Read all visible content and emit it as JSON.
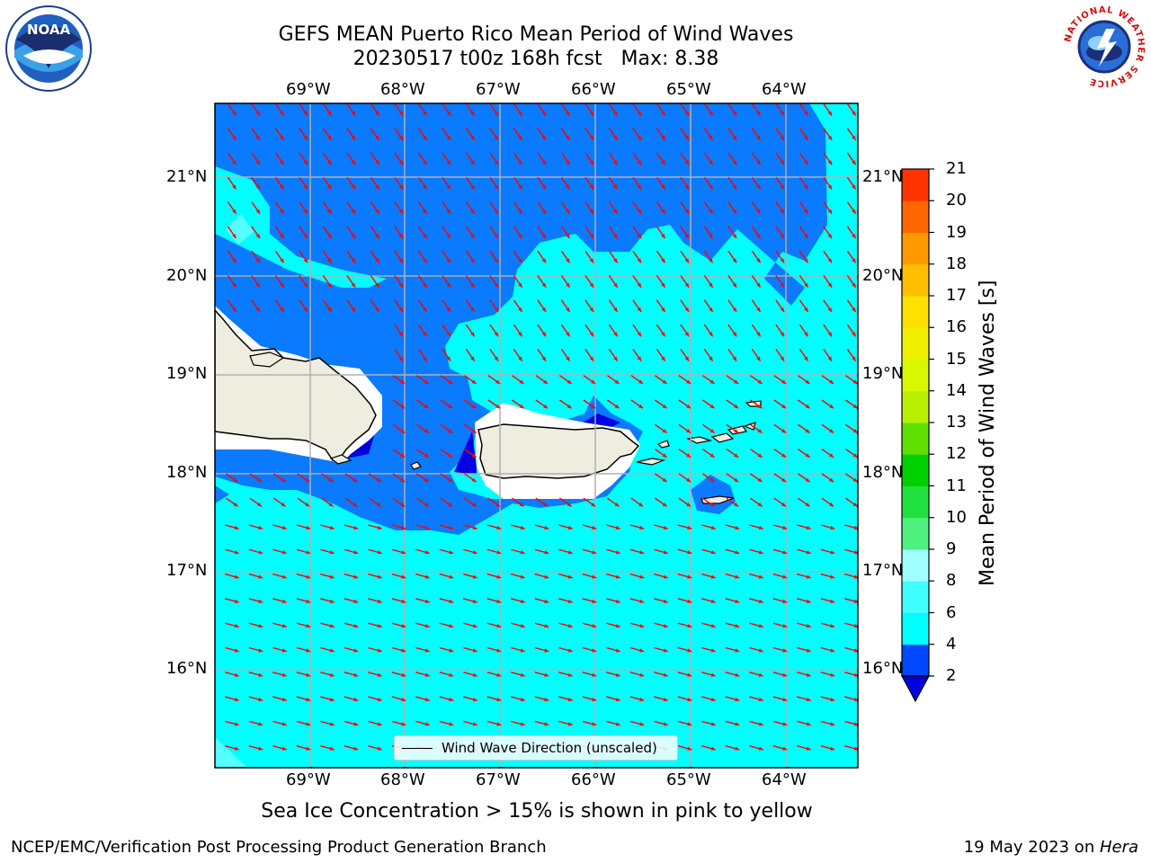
{
  "title": {
    "line1": "GEFS MEAN Puerto Rico Mean Period of Wind Waves",
    "line2": "20230517 t00z 168h fcst   Max: 8.38"
  },
  "axes": {
    "lon_labels": [
      "69°W",
      "68°W",
      "67°W",
      "66°W",
      "65°W",
      "64°W"
    ],
    "lat_labels": [
      "21°N",
      "20°N",
      "19°N",
      "18°N",
      "17°N",
      "16°N"
    ]
  },
  "colorbar": {
    "label": "Mean Period of Wind Waves [s]",
    "ticks": [
      "2",
      "4",
      "6",
      "8",
      "9",
      "10",
      "11",
      "12",
      "13",
      "14",
      "15",
      "16",
      "17",
      "18",
      "19",
      "20",
      "21"
    ],
    "colors": [
      "#0047ff",
      "#00ffff",
      "#40ffff",
      "#a0ffff",
      "#50f080",
      "#20e040",
      "#00d000",
      "#60e000",
      "#b8f000",
      "#d8f800",
      "#f0f000",
      "#ffe000",
      "#ffbf00",
      "#ff9900",
      "#ff6600",
      "#ff3300"
    ],
    "extend_color": "#0000e0"
  },
  "legend": {
    "label": "Wind Wave Direction (unscaled)"
  },
  "subtitle": "Sea Ice Concentration > 15% is shown in pink to yellow",
  "footer": {
    "left": "NCEP/EMC/Verification Post Processing Product Generation Branch",
    "right_prefix": "19 May 2023 on ",
    "right_host": "Hera"
  },
  "logos": {
    "left": "NOAA",
    "right_ring": "NATIONAL WEATHER SERVICE"
  },
  "map_colors": {
    "ocean_light": "#00ffff",
    "ocean_deep": "#0a7aff",
    "ocean_darkest": "#0000e0",
    "ocean_pale": "#55ffff",
    "land": "#eeede0",
    "arrow": "#ff0000",
    "grid": "#b0b0b0"
  }
}
